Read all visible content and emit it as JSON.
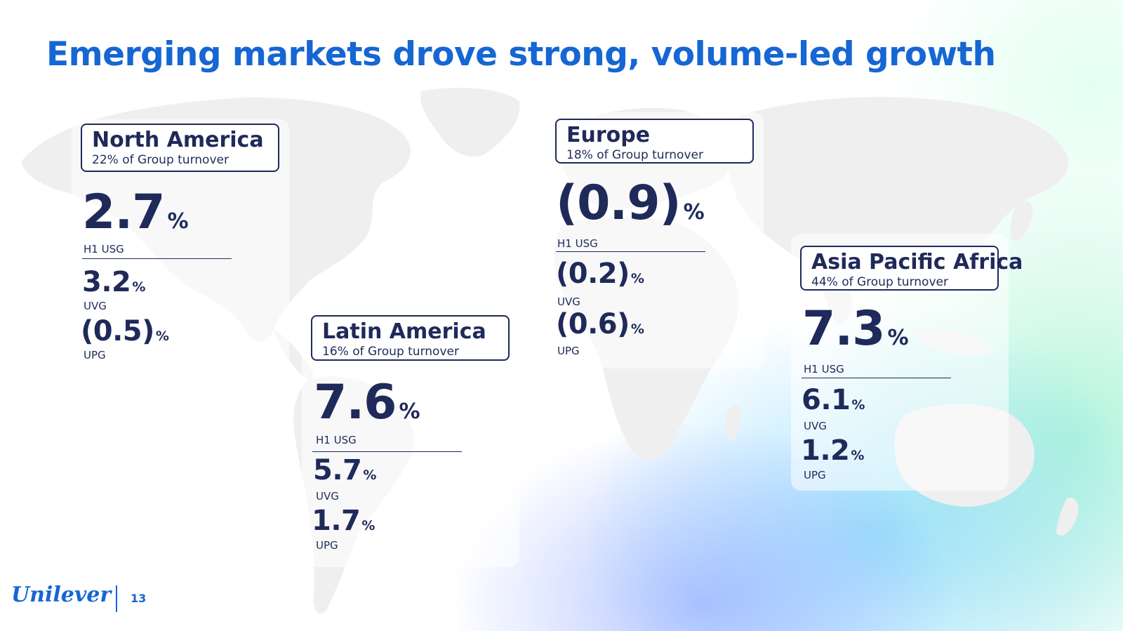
{
  "slide": {
    "title": "Emerging markets drove strong, volume-led growth",
    "accent_color": "#1666d3",
    "text_color": "#1f2a5a"
  },
  "regions": {
    "north_america": {
      "name": "North America",
      "share": "22% of Group turnover",
      "usg": {
        "value": "2.7",
        "unit": "%",
        "label": "H1 USG"
      },
      "uvg": {
        "value": "3.2",
        "unit": "%",
        "label": "UVG"
      },
      "upg": {
        "value": "(0.5)",
        "unit": "%",
        "label": "UPG"
      }
    },
    "latin_america": {
      "name": "Latin America",
      "share": "16% of Group turnover",
      "usg": {
        "value": "7.6",
        "unit": "%",
        "label": "H1 USG"
      },
      "uvg": {
        "value": "5.7",
        "unit": "%",
        "label": "UVG"
      },
      "upg": {
        "value": "1.7",
        "unit": "%",
        "label": "UPG"
      }
    },
    "europe": {
      "name": "Europe",
      "share": "18% of Group turnover",
      "usg": {
        "value": "(0.9)",
        "unit": "%",
        "label": "H1 USG"
      },
      "uvg": {
        "value": "(0.2)",
        "unit": "%",
        "label": "UVG"
      },
      "upg": {
        "value": "(0.6)",
        "unit": "%",
        "label": "UPG"
      }
    },
    "asia_pacific_africa": {
      "name": "Asia Pacific Africa",
      "share": "44% of Group turnover",
      "usg": {
        "value": "7.3",
        "unit": "%",
        "label": "H1 USG"
      },
      "uvg": {
        "value": "6.1",
        "unit": "%",
        "label": "UVG"
      },
      "upg": {
        "value": "1.2",
        "unit": "%",
        "label": "UPG"
      }
    }
  },
  "footer": {
    "logo_text": "Unilever",
    "page_number": "13"
  }
}
